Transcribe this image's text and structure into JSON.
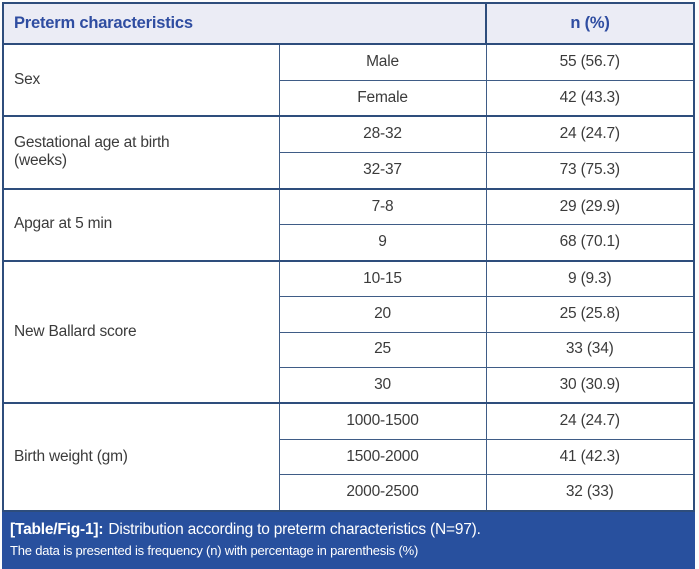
{
  "figure": {
    "header": {
      "characteristics": "Preterm characteristics",
      "n_percent": "n (%)"
    },
    "sections": [
      {
        "label": "Sex",
        "rows": [
          {
            "category": "Male",
            "value": "55 (56.7)"
          },
          {
            "category": "Female",
            "value": "42 (43.3)"
          }
        ]
      },
      {
        "label": "Gestational age at birth (weeks)",
        "rows": [
          {
            "category": "28-32",
            "value": "24 (24.7)"
          },
          {
            "category": "32-37",
            "value": "73 (75.3)"
          }
        ]
      },
      {
        "label": "Apgar at 5 min",
        "rows": [
          {
            "category": "7-8",
            "value": "29 (29.9)"
          },
          {
            "category": "9",
            "value": "68 (70.1)"
          }
        ]
      },
      {
        "label": "New Ballard score",
        "rows": [
          {
            "category": "10-15",
            "value": "9 (9.3)"
          },
          {
            "category": "20",
            "value": "25 (25.8)"
          },
          {
            "category": "25",
            "value": "33 (34)"
          },
          {
            "category": "30",
            "value": "30 (30.9)"
          }
        ]
      },
      {
        "label": "Birth weight (gm)",
        "rows": [
          {
            "category": "1000-1500",
            "value": "24 (24.7)"
          },
          {
            "category": "1500-2000",
            "value": "41 (42.3)"
          },
          {
            "category": "2000-2500",
            "value": "32 (33)"
          }
        ]
      }
    ],
    "caption": {
      "tag": "[Table/Fig-1]:",
      "title": "Distribution according to preterm characteristics (N=97).",
      "note": "The data is presented is frequency (n) with percentage in parenthesis (%)"
    },
    "colors": {
      "header_bg": "#ebecf5",
      "header_text": "#2f4da1",
      "border_navy": "#2e4d7c",
      "inner_border": "#3f5c86",
      "caption_bg": "#28509e",
      "caption_text": "#ffffff",
      "body_text": "#3b3b3b"
    }
  }
}
